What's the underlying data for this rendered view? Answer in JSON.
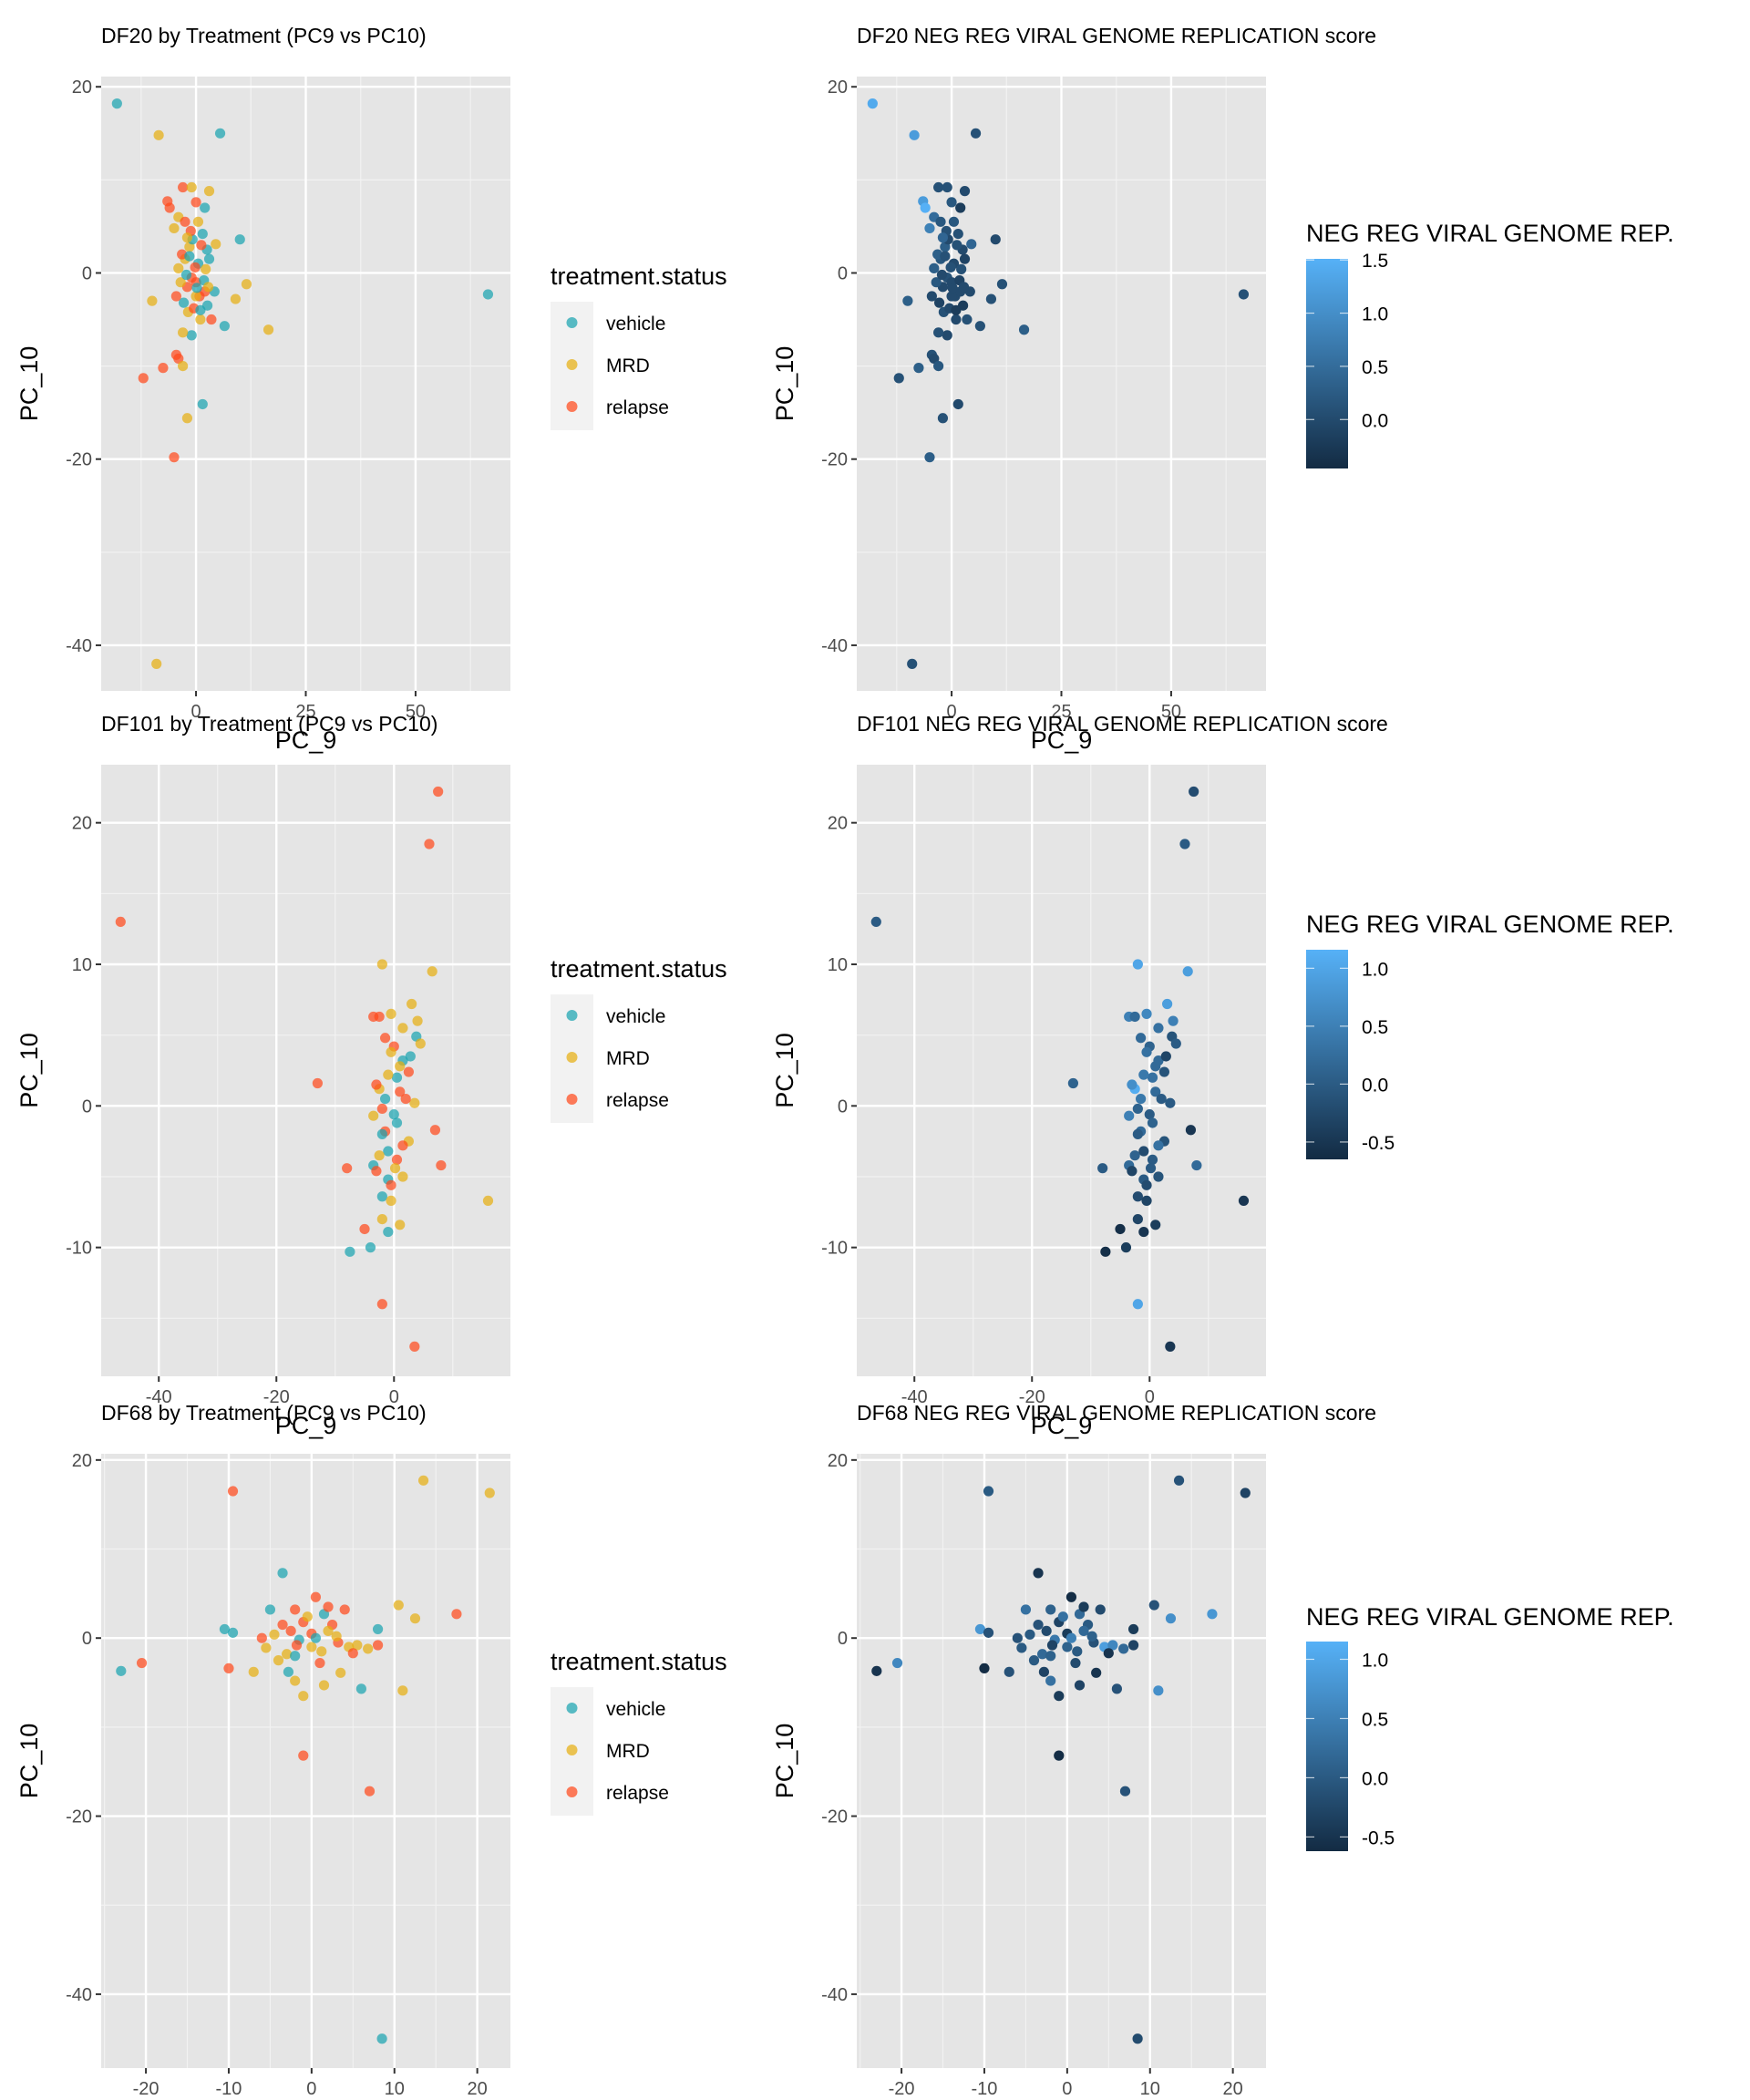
{
  "chart_data": [
    {
      "type": "scatter",
      "dataset": "DF20",
      "title": "DF20 by Treatment (PC9 vs PC10)",
      "xlabel": "PC_9",
      "ylabel": "PC_10",
      "xlim": [
        -21.6,
        71.6
      ],
      "ylim": [
        -44.9,
        21.1
      ],
      "xticks": [
        0,
        25,
        50
      ],
      "yticks": [
        20,
        0,
        -20,
        -40
      ],
      "grid": true,
      "legend": {
        "title": "treatment.status",
        "position": "right",
        "entries": [
          "vehicle",
          "MRD",
          "relapse"
        ]
      },
      "color_by": "treatment.status",
      "points_source": "DF20"
    },
    {
      "type": "scatter",
      "dataset": "DF20",
      "title": "DF20 NEG REG VIRAL GENOME REPLICATION score",
      "xlabel": "PC_9",
      "ylabel": "PC_10",
      "xlim": [
        -21.6,
        71.6
      ],
      "ylim": [
        -44.9,
        21.1
      ],
      "xticks": [
        0,
        25,
        50
      ],
      "yticks": [
        20,
        0,
        -20,
        -40
      ],
      "grid": true,
      "colorbar": {
        "title": "NEG REG VIRAL GENOME REP.",
        "position": "right",
        "range": [
          -0.46,
          1.51
        ],
        "ticks": [
          1.5,
          1.0,
          0.5,
          0.0
        ],
        "tick_labels": [
          "1.5",
          "1.0",
          "0.5",
          "0.0"
        ],
        "low_color": "#132B43",
        "high_color": "#56B1F7"
      },
      "color_by": "score",
      "points_source": "DF20"
    },
    {
      "type": "scatter",
      "dataset": "DF101",
      "title": "DF101 by Treatment (PC9 vs PC10)",
      "xlabel": "PC_9",
      "ylabel": "PC_10",
      "xlim": [
        -49.8,
        19.8
      ],
      "ylim": [
        -19.1,
        24.1
      ],
      "xticks": [
        -40,
        -20,
        0
      ],
      "yticks": [
        20,
        10,
        0,
        -10
      ],
      "grid": true,
      "legend": {
        "title": "treatment.status",
        "position": "right",
        "entries": [
          "vehicle",
          "MRD",
          "relapse"
        ]
      },
      "color_by": "treatment.status",
      "points_source": "DF101"
    },
    {
      "type": "scatter",
      "dataset": "DF101",
      "title": "DF101 NEG REG VIRAL GENOME REPLICATION score",
      "xlabel": "PC_9",
      "ylabel": "PC_10",
      "xlim": [
        -49.8,
        19.8
      ],
      "ylim": [
        -19.1,
        24.1
      ],
      "xticks": [
        -40,
        -20,
        0
      ],
      "yticks": [
        20,
        10,
        0,
        -10
      ],
      "grid": true,
      "colorbar": {
        "title": "NEG REG VIRAL GENOME REP.",
        "position": "right",
        "range": [
          -0.65,
          1.16
        ],
        "ticks": [
          1.0,
          0.5,
          0.0,
          -0.5
        ],
        "tick_labels": [
          "1.0",
          "0.5",
          "0.0",
          "-0.5"
        ],
        "low_color": "#132B43",
        "high_color": "#56B1F7"
      },
      "color_by": "score",
      "points_source": "DF101"
    },
    {
      "type": "scatter",
      "dataset": "DF68",
      "title": "DF68 by Treatment (PC9 vs PC10)",
      "xlabel": "PC_9",
      "ylabel": "PC_10",
      "xlim": [
        -25.4,
        24.0
      ],
      "ylim": [
        -48.3,
        20.7
      ],
      "xticks": [
        -20,
        -10,
        0,
        10,
        20
      ],
      "yticks": [
        20,
        0,
        -20,
        -40
      ],
      "grid": true,
      "legend": {
        "title": "treatment.status",
        "position": "right",
        "entries": [
          "vehicle",
          "MRD",
          "relapse"
        ]
      },
      "color_by": "treatment.status",
      "points_source": "DF68"
    },
    {
      "type": "scatter",
      "dataset": "DF68",
      "title": "DF68 NEG REG VIRAL GENOME REPLICATION score",
      "xlabel": "PC_9",
      "ylabel": "PC_10",
      "xlim": [
        -25.4,
        24.0
      ],
      "ylim": [
        -48.3,
        20.7
      ],
      "xticks": [
        -20,
        -10,
        0,
        10,
        20
      ],
      "yticks": [
        20,
        0,
        -20,
        -40
      ],
      "grid": true,
      "colorbar": {
        "title": "NEG REG VIRAL GENOME REP.",
        "position": "right",
        "range": [
          -0.62,
          1.15
        ],
        "ticks": [
          1.0,
          0.5,
          0.0,
          -0.5
        ],
        "tick_labels": [
          "1.0",
          "0.5",
          "0.0",
          "-0.5"
        ],
        "low_color": "#132B43",
        "high_color": "#56B1F7"
      },
      "color_by": "score",
      "points_source": "DF68"
    }
  ],
  "group_colors": {
    "vehicle": "#1AA3B0",
    "MRD": "#E6AE12",
    "relapse": "#FF4A1C"
  },
  "points": {
    "DF20": [
      [
        "vehicle",
        -18,
        18.2,
        1.4
      ],
      [
        "MRD",
        -8.5,
        14.8,
        1.2
      ],
      [
        "vehicle",
        5.5,
        15,
        0.1
      ],
      [
        "vehicle",
        66.5,
        -2.3,
        0.1
      ],
      [
        "vehicle",
        10,
        3.6,
        0.0
      ],
      [
        "MRD",
        16.5,
        -6.1,
        0.3
      ],
      [
        "MRD",
        11.5,
        -1.2,
        0.1
      ],
      [
        "MRD",
        9,
        -2.8,
        0.1
      ],
      [
        "MRD",
        -10,
        -3,
        0.3
      ],
      [
        "vehicle",
        6.5,
        -5.7,
        0.1
      ],
      [
        "vehicle",
        1.5,
        -14.1,
        0.0
      ],
      [
        "MRD",
        -2,
        -15.6,
        0.1
      ],
      [
        "relapse",
        -5,
        -19.8,
        0.3
      ],
      [
        "MRD",
        -9,
        -42,
        0.1
      ],
      [
        "relapse",
        -12,
        -11.3,
        0.1
      ],
      [
        "relapse",
        -7.5,
        -10.2,
        0.3
      ],
      [
        "relapse",
        -4.5,
        -8.8,
        0.1
      ],
      [
        "relapse",
        -4,
        -9.2,
        0.0
      ],
      [
        "MRD",
        -3,
        -10,
        0.2
      ],
      [
        "vehicle",
        -1,
        -6.7,
        0.0
      ],
      [
        "MRD",
        -3,
        -6.4,
        0.1
      ],
      [
        "relapse",
        -3,
        9.2,
        0.1
      ],
      [
        "MRD",
        -1,
        9.2,
        0.1
      ],
      [
        "MRD",
        3,
        8.8,
        0.0
      ],
      [
        "relapse",
        -6.5,
        7.7,
        1.2
      ],
      [
        "relapse",
        -6,
        7.0,
        1.5
      ],
      [
        "relapse",
        0,
        7.6,
        0.2
      ],
      [
        "vehicle",
        2,
        7.0,
        -0.2
      ],
      [
        "MRD",
        4.5,
        3.1,
        0.4
      ],
      [
        "vehicle",
        4.2,
        -2.0,
        0.0
      ],
      [
        "relapse",
        3.5,
        -5.0,
        0.1
      ],
      [
        "MRD",
        -5.0,
        4.8,
        0.8
      ],
      [
        "MRD",
        -4.0,
        6.0,
        0.5
      ],
      [
        "relapse",
        -2.5,
        5.5,
        0.2
      ],
      [
        "vehicle",
        1.5,
        4.2,
        0.1
      ],
      [
        "vehicle",
        2.5,
        2.5,
        0.0
      ],
      [
        "relapse",
        -2.0,
        -1.5,
        0.0
      ],
      [
        "relapse",
        -1.0,
        -0.5,
        0.1
      ],
      [
        "relapse",
        0.0,
        -1.0,
        0.0
      ],
      [
        "MRD",
        -2.5,
        1.5,
        0.2
      ],
      [
        "MRD",
        -1.5,
        2.8,
        0.3
      ],
      [
        "vehicle",
        0.5,
        1.0,
        0.0
      ],
      [
        "vehicle",
        1.8,
        -0.8,
        -0.1
      ],
      [
        "MRD",
        2.2,
        0.4,
        0.1
      ],
      [
        "relapse",
        0.8,
        -2.5,
        0.0
      ],
      [
        "vehicle",
        -2.8,
        -3.2,
        -0.1
      ],
      [
        "MRD",
        -1.8,
        -4.2,
        0.1
      ],
      [
        "relapse",
        -0.5,
        -3.8,
        0.0
      ],
      [
        "vehicle",
        2.6,
        -3.5,
        -0.2
      ],
      [
        "MRD",
        -3.5,
        -1.0,
        0.2
      ],
      [
        "relapse",
        -3.2,
        2.0,
        0.3
      ],
      [
        "vehicle",
        -0.8,
        3.6,
        0.0
      ],
      [
        "MRD",
        0.5,
        5.5,
        0.2
      ],
      [
        "relapse",
        1.2,
        3.0,
        0.1
      ],
      [
        "vehicle",
        -2.2,
        -0.2,
        0.0
      ],
      [
        "MRD",
        1.0,
        -5.0,
        0.0
      ],
      [
        "relapse",
        -1.2,
        4.5,
        0.1
      ],
      [
        "vehicle",
        3.0,
        1.5,
        -0.1
      ],
      [
        "MRD",
        -4.0,
        0.5,
        0.3
      ],
      [
        "relapse",
        2.0,
        -2.0,
        0.0
      ],
      [
        "vehicle",
        -1.5,
        1.8,
        0.1
      ],
      [
        "MRD",
        0.0,
        -2.5,
        0.0
      ],
      [
        "relapse",
        -0.2,
        0.6,
        0.1
      ],
      [
        "vehicle",
        1.0,
        -4.0,
        -0.2
      ],
      [
        "MRD",
        -2.0,
        3.8,
        0.4
      ],
      [
        "relapse",
        -4.5,
        -2.5,
        0.0
      ],
      [
        "vehicle",
        0.2,
        -1.6,
        0.0
      ],
      [
        "MRD",
        2.8,
        -1.5,
        0.0
      ]
    ],
    "DF101": [
      [
        "relapse",
        -46.5,
        13,
        0.0
      ],
      [
        "relapse",
        7.5,
        22.2,
        -0.2
      ],
      [
        "relapse",
        6,
        18.5,
        0.0
      ],
      [
        "MRD",
        -2,
        10,
        1.0
      ],
      [
        "MRD",
        6.5,
        9.5,
        0.9
      ],
      [
        "relapse",
        -13,
        1.6,
        0.1
      ],
      [
        "MRD",
        16,
        -6.7,
        -0.5
      ],
      [
        "relapse",
        8,
        -4.2,
        0.2
      ],
      [
        "relapse",
        7,
        -1.7,
        -0.5
      ],
      [
        "relapse",
        -8,
        -4.4,
        0.0
      ],
      [
        "vehicle",
        -7.5,
        -10.3,
        -0.6
      ],
      [
        "vehicle",
        -4,
        -10,
        -0.4
      ],
      [
        "relapse",
        -5,
        -8.7,
        -0.6
      ],
      [
        "relapse",
        -2,
        -14,
        1.0
      ],
      [
        "relapse",
        3.5,
        -17,
        -0.5
      ],
      [
        "vehicle",
        -1,
        -8.9,
        -0.5
      ],
      [
        "MRD",
        1,
        -8.4,
        -0.4
      ],
      [
        "MRD",
        -2,
        -8,
        -0.3
      ],
      [
        "vehicle",
        -2,
        -6.4,
        -0.2
      ],
      [
        "MRD",
        -0.5,
        -6.7,
        -0.3
      ],
      [
        "relapse",
        -3.5,
        6.3,
        0.5
      ],
      [
        "relapse",
        -2.5,
        6.3,
        0.2
      ],
      [
        "MRD",
        -0.5,
        6.5,
        0.6
      ],
      [
        "MRD",
        3,
        7.2,
        0.9
      ],
      [
        "MRD",
        4,
        6.0,
        0.5
      ],
      [
        "MRD",
        1.5,
        5.5,
        0.3
      ],
      [
        "vehicle",
        3.8,
        4.9,
        -0.1
      ],
      [
        "relapse",
        -1.5,
        4.8,
        0.2
      ],
      [
        "MRD",
        4.5,
        4.4,
        0.0
      ],
      [
        "relapse",
        0.0,
        4.2,
        0.1
      ],
      [
        "vehicle",
        1.5,
        3.2,
        0.2
      ],
      [
        "MRD",
        -0.5,
        3.8,
        0.3
      ],
      [
        "relapse",
        2.5,
        2.4,
        -0.1
      ],
      [
        "vehicle",
        0.5,
        2.0,
        0.3
      ],
      [
        "MRD",
        -2.5,
        1.2,
        1.1
      ],
      [
        "relapse",
        -3.0,
        1.5,
        0.7
      ],
      [
        "vehicle",
        -1.5,
        0.5,
        0.4
      ],
      [
        "relapse",
        1.0,
        1.0,
        0.2
      ],
      [
        "MRD",
        3.5,
        0.2,
        0.0
      ],
      [
        "vehicle",
        0.0,
        -0.6,
        0.0
      ],
      [
        "MRD",
        -3.5,
        -0.7,
        0.5
      ],
      [
        "relapse",
        -1.5,
        -1.8,
        0.2
      ],
      [
        "vehicle",
        -2.0,
        -2.0,
        0.0
      ],
      [
        "MRD",
        2.5,
        -2.5,
        -0.1
      ],
      [
        "relapse",
        1.5,
        -2.8,
        0.3
      ],
      [
        "vehicle",
        -1.0,
        -3.2,
        -0.2
      ],
      [
        "MRD",
        -2.5,
        -3.5,
        0.1
      ],
      [
        "relapse",
        0.5,
        -3.8,
        0.0
      ],
      [
        "vehicle",
        -3.5,
        -4.2,
        0.2
      ],
      [
        "relapse",
        -3.0,
        -4.6,
        -0.3
      ],
      [
        "vehicle",
        -1.0,
        -5.2,
        0.0
      ],
      [
        "MRD",
        1.5,
        -5.0,
        -0.1
      ],
      [
        "relapse",
        -0.5,
        -5.6,
        -0.2
      ],
      [
        "vehicle",
        0.5,
        -1.2,
        0.1
      ],
      [
        "MRD",
        1.0,
        2.8,
        0.2
      ],
      [
        "relapse",
        2.0,
        0.5,
        0.0
      ],
      [
        "vehicle",
        2.8,
        3.5,
        -0.3
      ],
      [
        "MRD",
        -1.0,
        2.2,
        0.4
      ],
      [
        "relapse",
        -2.0,
        -0.2,
        0.1
      ],
      [
        "MRD",
        0.2,
        -4.4,
        0.0
      ]
    ],
    "DF68": [
      [
        "relapse",
        -9.5,
        16.5,
        0.0
      ],
      [
        "MRD",
        13.5,
        17.7,
        -0.1
      ],
      [
        "MRD",
        21.5,
        16.3,
        -0.3
      ],
      [
        "vehicle",
        -3.5,
        7.3,
        -0.5
      ],
      [
        "relapse",
        17.5,
        2.7,
        0.8
      ],
      [
        "MRD",
        10.5,
        3.7,
        -0.1
      ],
      [
        "MRD",
        12.5,
        2.2,
        0.7
      ],
      [
        "vehicle",
        -10.5,
        1,
        0.8
      ],
      [
        "vehicle",
        -9.5,
        0.6,
        -0.1
      ],
      [
        "relapse",
        -20.5,
        -2.8,
        0.6
      ],
      [
        "vehicle",
        -23,
        -3.7,
        -0.5
      ],
      [
        "relapse",
        -10,
        -3.4,
        -0.6
      ],
      [
        "vehicle",
        6,
        -5.7,
        -0.1
      ],
      [
        "MRD",
        11,
        -5.9,
        0.7
      ],
      [
        "relapse",
        -1,
        -13.2,
        -0.6
      ],
      [
        "relapse",
        7,
        -17.2,
        -0.1
      ],
      [
        "vehicle",
        8.5,
        -45,
        -0.2
      ],
      [
        "vehicle",
        8,
        1,
        -0.4
      ],
      [
        "relapse",
        8,
        -0.8,
        -0.3
      ],
      [
        "MRD",
        -7,
        -3.8,
        -0.1
      ],
      [
        "MRD",
        -5.5,
        -1.1,
        0.0
      ],
      [
        "MRD",
        -2,
        -4.8,
        0.3
      ],
      [
        "MRD",
        -1,
        -6.5,
        -0.4
      ],
      [
        "MRD",
        1.5,
        -5.3,
        -0.3
      ],
      [
        "MRD",
        3.5,
        -3.9,
        -0.5
      ],
      [
        "relapse",
        0.5,
        4.6,
        -0.6
      ],
      [
        "relapse",
        4,
        3.2,
        -0.2
      ],
      [
        "relapse",
        -2,
        3.2,
        0.1
      ],
      [
        "vehicle",
        -5,
        3.2,
        0.3
      ],
      [
        "vehicle",
        1.5,
        2.7,
        0.2
      ],
      [
        "relapse",
        2.5,
        1.5,
        0.0
      ],
      [
        "relapse",
        -1,
        1.8,
        -0.3
      ],
      [
        "relapse",
        0,
        0.5,
        -0.4
      ],
      [
        "relapse",
        -2.5,
        0.8,
        -0.2
      ],
      [
        "MRD",
        0,
        -1.0,
        0.1
      ],
      [
        "MRD",
        1.2,
        -1.5,
        0.0
      ],
      [
        "MRD",
        -3,
        -1.8,
        0.2
      ],
      [
        "vehicle",
        -2,
        -2.0,
        0.1
      ],
      [
        "relapse",
        3.2,
        -0.5,
        -0.1
      ],
      [
        "MRD",
        4.5,
        -1.0,
        0.9
      ],
      [
        "MRD",
        5.5,
        -0.8,
        0.6
      ],
      [
        "relapse",
        5.0,
        -1.7,
        -0.5
      ],
      [
        "MRD",
        -4.5,
        0.4,
        0.0
      ],
      [
        "relapse",
        -3.5,
        1.5,
        -0.1
      ],
      [
        "vehicle",
        -1.5,
        -0.2,
        0.4
      ],
      [
        "MRD",
        2.0,
        0.8,
        0.2
      ],
      [
        "relapse",
        1.0,
        -2.8,
        -0.2
      ],
      [
        "MRD",
        -0.5,
        2.4,
        0.3
      ],
      [
        "relapse",
        -1.8,
        -0.8,
        -0.3
      ],
      [
        "MRD",
        3.0,
        0.2,
        0.1
      ],
      [
        "vehicle",
        0.5,
        0.0,
        0.5
      ],
      [
        "relapse",
        2.0,
        3.5,
        -0.4
      ],
      [
        "MRD",
        -4.0,
        -2.5,
        0.0
      ],
      [
        "relapse",
        -6.0,
        0.0,
        -0.1
      ],
      [
        "MRD",
        6.8,
        -1.2,
        0.2
      ],
      [
        "vehicle",
        -2.8,
        -3.8,
        -0.3
      ]
    ]
  }
}
